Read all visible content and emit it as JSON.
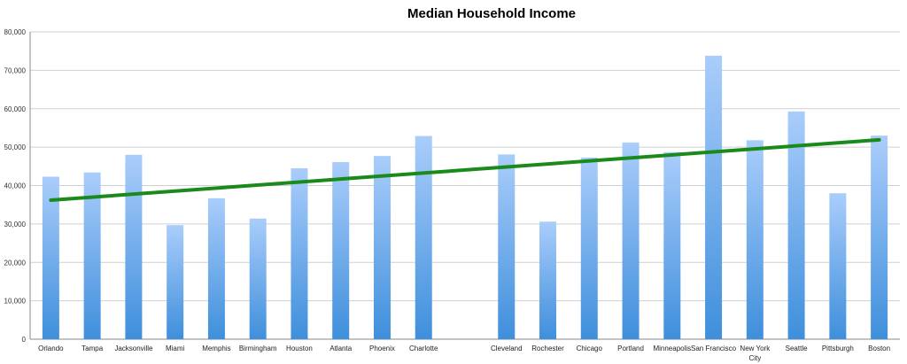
{
  "chart_data": {
    "type": "bar",
    "title": "Median Household Income",
    "xlabel": "",
    "ylabel": "",
    "ylim": [
      0,
      80000
    ],
    "yticks": [
      "0",
      "10,000",
      "20,000",
      "30,000",
      "40,000",
      "50,000",
      "60,000",
      "70,000",
      "80,000"
    ],
    "grid": true,
    "categories": [
      "Orlando",
      "Tampa",
      "Jacksonville",
      "Miami",
      "Memphis",
      "Birmingham",
      "Houston",
      "Atlanta",
      "Phoenix",
      "Charlotte",
      "",
      "Cleveland",
      "Rochester",
      "Chicago",
      "Portland",
      "Minneapolis",
      "San Francisco",
      "New York City",
      "Seattle",
      "Pittsburgh",
      "Boston"
    ],
    "category_lines": [
      [
        "Orlando"
      ],
      [
        "Tampa"
      ],
      [
        "Jacksonville"
      ],
      [
        "Miami"
      ],
      [
        "Memphis"
      ],
      [
        "Birmingham"
      ],
      [
        "Houston"
      ],
      [
        "Atlanta"
      ],
      [
        "Phoenix"
      ],
      [
        "Charlotte"
      ],
      [
        ""
      ],
      [
        "Cleveland"
      ],
      [
        "Rochester"
      ],
      [
        "Chicago"
      ],
      [
        "Portland"
      ],
      [
        "Minneapolis"
      ],
      [
        "San Francisco"
      ],
      [
        "New York",
        "City"
      ],
      [
        "Seattle"
      ],
      [
        "Pittsburgh"
      ],
      [
        "Boston"
      ]
    ],
    "values": [
      42300,
      43400,
      48000,
      29700,
      36700,
      31400,
      44500,
      46100,
      47700,
      52900,
      null,
      48100,
      30600,
      47300,
      51200,
      48700,
      73800,
      51800,
      59300,
      38000,
      53000
    ],
    "trendline": {
      "start": 36200,
      "end": 51900,
      "color": "#1a8a1a"
    },
    "bar_colors": {
      "top": "#aacdfb",
      "bottom": "#3f8fdc"
    }
  }
}
